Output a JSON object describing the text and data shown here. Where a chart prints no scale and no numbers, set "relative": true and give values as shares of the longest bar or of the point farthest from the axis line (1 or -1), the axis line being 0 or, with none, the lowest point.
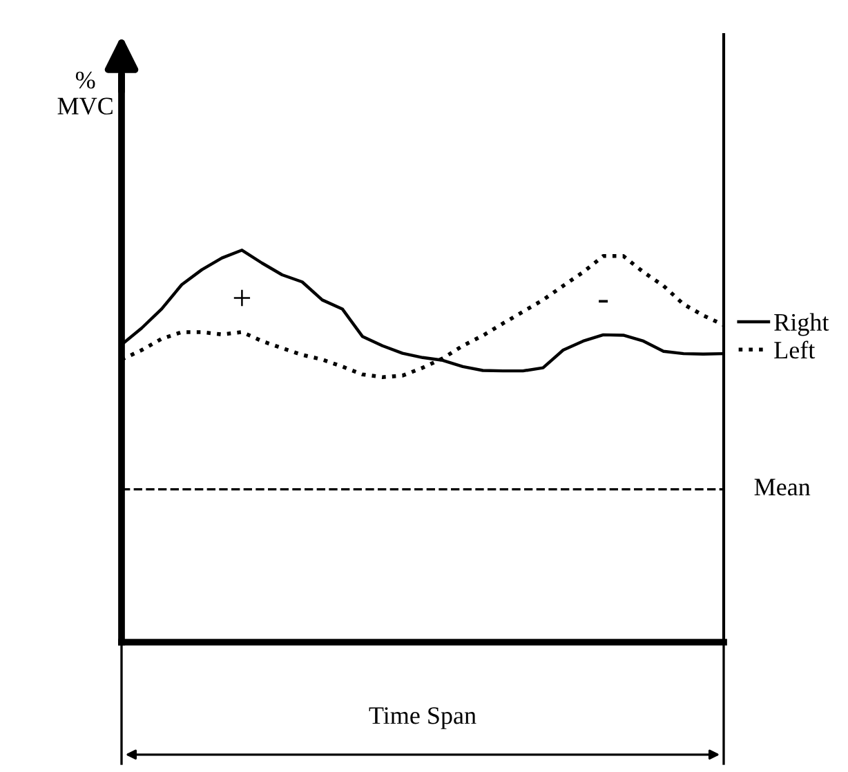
{
  "chart_data": {
    "type": "line",
    "relative": true,
    "xlabel": "Time Span",
    "categories": [
      null,
      null,
      null,
      null,
      null,
      null,
      null,
      null,
      null,
      null,
      null,
      null,
      null,
      null,
      null,
      null,
      null,
      null,
      null,
      null,
      null,
      null,
      null,
      null,
      null,
      null,
      null,
      null,
      null,
      null,
      null
    ],
    "series": [
      {
        "name": "Right",
        "color": "#000000",
        "line_style": "solid",
        "values": [
          0.759,
          0.801,
          0.85,
          0.912,
          0.95,
          0.98,
          1.0,
          0.967,
          0.937,
          0.919,
          0.873,
          0.85,
          0.78,
          0.756,
          0.737,
          0.726,
          0.719,
          0.703,
          0.693,
          0.692,
          0.692,
          0.7,
          0.745,
          0.768,
          0.784,
          0.783,
          0.768,
          0.742,
          0.736,
          0.735,
          0.736
        ]
      },
      {
        "name": "Left",
        "color": "#000000",
        "line_style": "dotted",
        "values": [
          0.721,
          0.745,
          0.774,
          0.791,
          0.791,
          0.785,
          0.791,
          0.768,
          0.75,
          0.733,
          0.721,
          0.703,
          0.683,
          0.676,
          0.68,
          0.7,
          0.724,
          0.756,
          0.782,
          0.813,
          0.843,
          0.873,
          0.909,
          0.944,
          0.985,
          0.985,
          0.944,
          0.909,
          0.862,
          0.833,
          0.809
        ]
      }
    ],
    "ref_lines": [
      {
        "axis": "y",
        "value": 0.39,
        "label": "Mean",
        "color": "#000000",
        "line_style": "dashed"
      }
    ],
    "annotations": [
      "% MVC",
      "+",
      "-"
    ],
    "legend": "right"
  }
}
